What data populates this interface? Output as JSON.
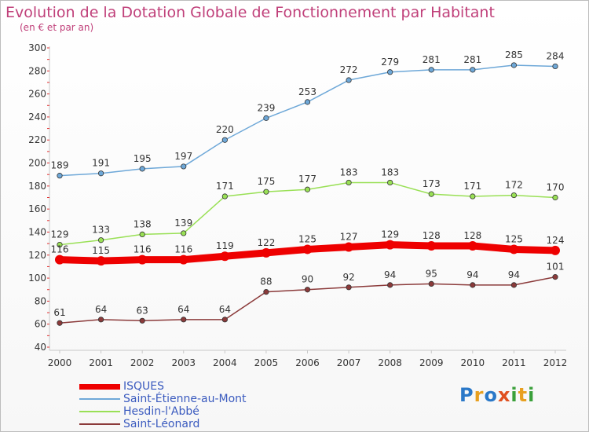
{
  "chart_data": {
    "type": "line",
    "title": "Evolution de la Dotation Globale de Fonctionnement par Habitant",
    "subtitle": "(en € et par an)",
    "categories": [
      "2000",
      "2001",
      "2002",
      "2003",
      "2004",
      "2005",
      "2006",
      "2007",
      "2008",
      "2009",
      "2010",
      "2011",
      "2012"
    ],
    "ylim": [
      40,
      300
    ],
    "yticks": [
      40,
      60,
      80,
      100,
      120,
      140,
      160,
      180,
      200,
      220,
      240,
      260,
      280,
      300
    ],
    "grid": false,
    "legend_placement": "bottom-left",
    "series": [
      {
        "name": "ISQUES",
        "color": "#ee0000",
        "emphasis": true,
        "values": [
          116,
          115,
          116,
          116,
          119,
          122,
          125,
          127,
          129,
          128,
          128,
          125,
          124
        ]
      },
      {
        "name": "Saint-Étienne-au-Mont",
        "color": "#6ea8d8",
        "emphasis": false,
        "values": [
          189,
          191,
          195,
          197,
          220,
          239,
          253,
          272,
          279,
          281,
          281,
          285,
          284
        ]
      },
      {
        "name": "Hesdin-l'Abbé",
        "color": "#99e055",
        "emphasis": false,
        "values": [
          129,
          133,
          138,
          139,
          171,
          175,
          177,
          183,
          183,
          173,
          171,
          172,
          170
        ]
      },
      {
        "name": "Saint-Léonard",
        "color": "#8b3a3a",
        "emphasis": false,
        "values": [
          61,
          64,
          63,
          64,
          64,
          88,
          90,
          92,
          94,
          95,
          94,
          94,
          101
        ]
      }
    ]
  },
  "logo": {
    "letters": [
      {
        "char": "P",
        "color": "#2a78c8"
      },
      {
        "char": "r",
        "color": "#e8a020"
      },
      {
        "char": "o",
        "color": "#2a78c8"
      },
      {
        "char": "x",
        "color": "#e05020"
      },
      {
        "char": "i",
        "color": "#3aa03a"
      },
      {
        "char": "t",
        "color": "#e8a020"
      },
      {
        "char": "i",
        "color": "#3aa03a"
      }
    ]
  }
}
